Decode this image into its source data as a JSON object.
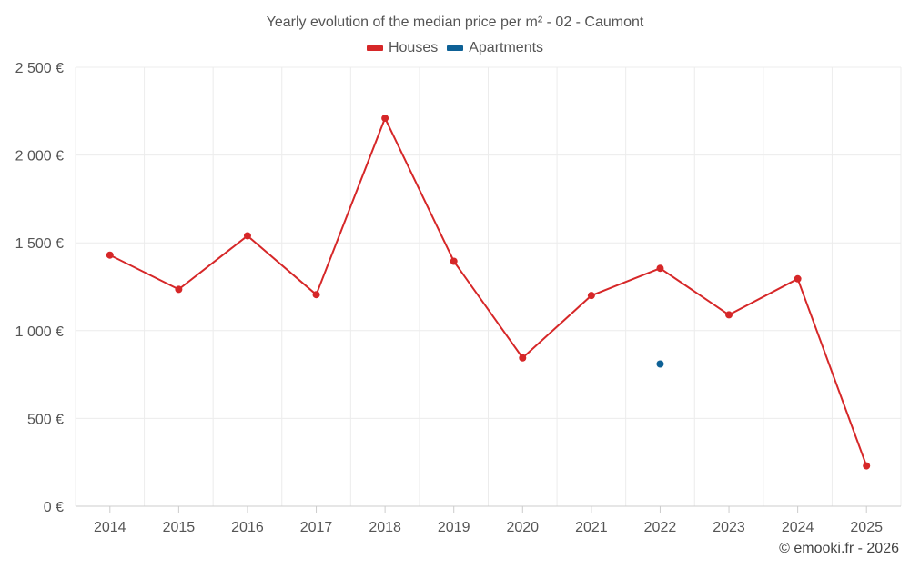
{
  "chart_data": {
    "type": "line",
    "title": "Yearly evolution of the median price per m² - 02 - Caumont",
    "categories": [
      "2014",
      "2015",
      "2016",
      "2017",
      "2018",
      "2019",
      "2020",
      "2021",
      "2022",
      "2023",
      "2024",
      "2025"
    ],
    "series": [
      {
        "name": "Houses",
        "color": "#d62728",
        "values": [
          1430,
          1235,
          1540,
          1205,
          2210,
          1395,
          845,
          1200,
          1355,
          1090,
          1295,
          230
        ]
      },
      {
        "name": "Apartments",
        "color": "#0e6196",
        "values": [
          null,
          null,
          null,
          null,
          null,
          null,
          null,
          null,
          810,
          null,
          null,
          null
        ]
      }
    ],
    "ylim": [
      0,
      2500
    ],
    "yticks": [
      0,
      500,
      1000,
      1500,
      2000,
      2500
    ],
    "ytick_labels": [
      "0 €",
      "500 €",
      "1 000 €",
      "1 500 €",
      "2 000 €",
      "2 500 €"
    ],
    "grid": true,
    "legend": "top-center"
  },
  "credit": "© emooki.fr - 2026"
}
